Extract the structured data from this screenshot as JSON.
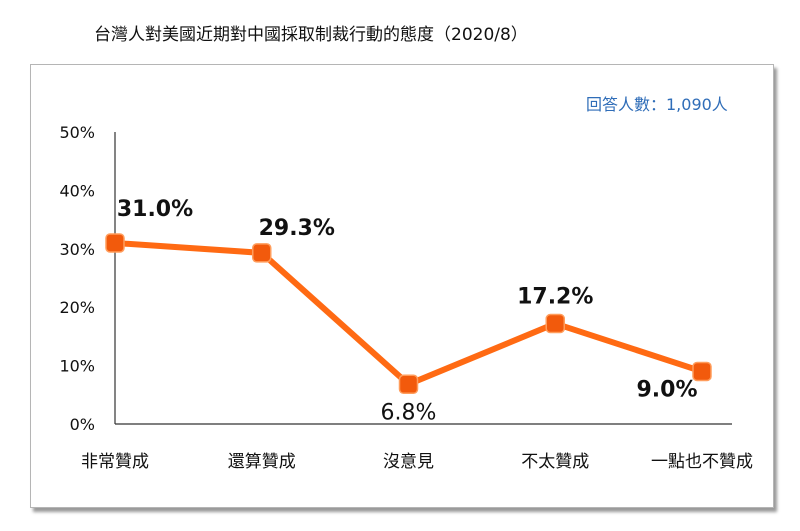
{
  "respondents_label": "回答人數：1,090人",
  "colors": {
    "line": "#ff6a13",
    "marker": "#f25a0c",
    "marker_edge": "#ff9d5c",
    "axis": "#333333",
    "note": "#2f6db8"
  },
  "chart_data": {
    "type": "line",
    "title": "台灣人對美國近期對中國採取制裁行動的態度（2020/8）",
    "categories": [
      "非常贊成",
      "還算贊成",
      "沒意見",
      "不太贊成",
      "一點也不贊成"
    ],
    "series": [
      {
        "values": [
          31.0,
          29.3,
          6.8,
          17.2,
          9.0
        ]
      }
    ],
    "data_labels": [
      "31.0%",
      "29.3%",
      "6.8%",
      "17.2%",
      "9.0%"
    ],
    "bold_labels": [
      true,
      true,
      false,
      true,
      true
    ],
    "label_position": [
      "above",
      "above",
      "below",
      "above",
      "below"
    ],
    "yticks": [
      "0%",
      "10%",
      "20%",
      "30%",
      "40%",
      "50%"
    ],
    "ylim": [
      0,
      50
    ],
    "grid": false,
    "xlabel": "",
    "ylabel": ""
  }
}
